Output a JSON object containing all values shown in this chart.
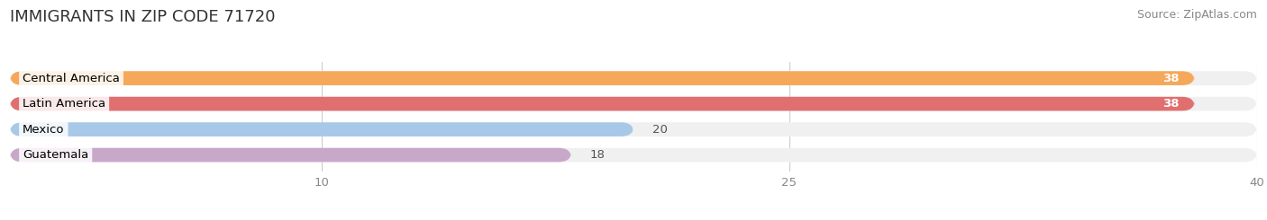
{
  "title": "IMMIGRANTS IN ZIP CODE 71720",
  "source": "Source: ZipAtlas.com",
  "categories": [
    "Central America",
    "Latin America",
    "Mexico",
    "Guatemala"
  ],
  "values": [
    38,
    38,
    20,
    18
  ],
  "bar_colors": [
    "#F5A85A",
    "#E07070",
    "#A8C8E8",
    "#C8A8C8"
  ],
  "bar_bg_colors": [
    "#F0F0F0",
    "#F0F0F0",
    "#F0F0F0",
    "#F0F0F0"
  ],
  "xlim": [
    0,
    40
  ],
  "xticks": [
    10,
    25,
    40
  ],
  "value_label_color": [
    "white",
    "white",
    "black",
    "black"
  ],
  "title_fontsize": 13,
  "source_fontsize": 9,
  "label_fontsize": 9.5,
  "tick_fontsize": 9.5,
  "background_color": "#ffffff"
}
